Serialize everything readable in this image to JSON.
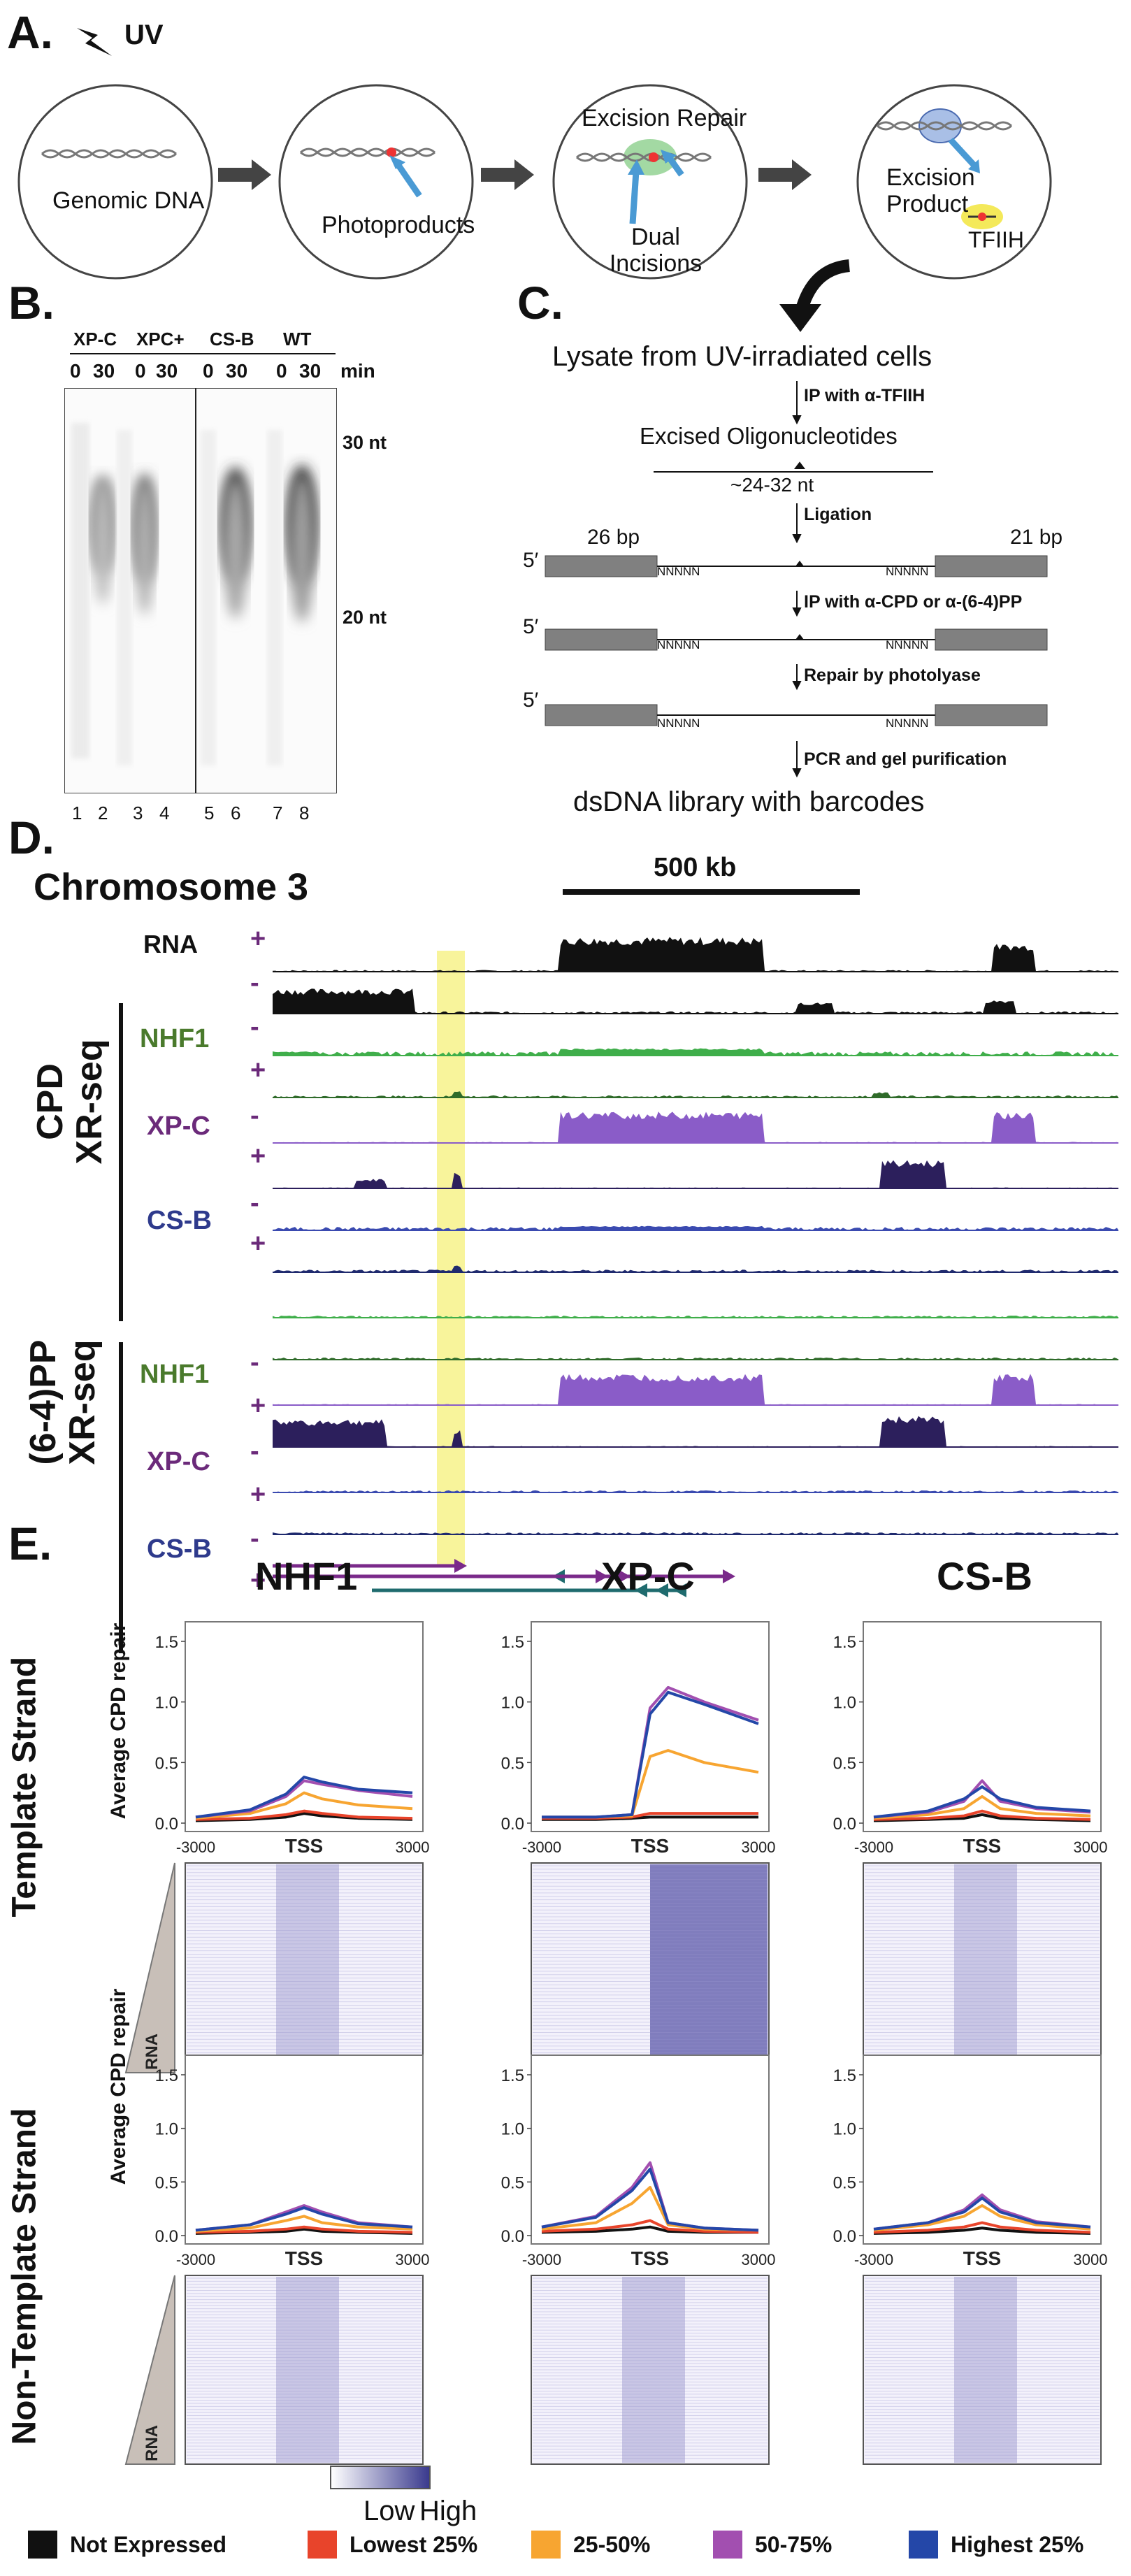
{
  "panel_letters": {
    "A": "A.",
    "B": "B.",
    "C": "C.",
    "D": "D.",
    "E": "E."
  },
  "panelA": {
    "uv_label": "UV",
    "circles": [
      "Genomic DNA",
      "Photoproducts",
      "Excision Repair",
      "Dual Incisions",
      "Excision Product",
      "TFIIH"
    ]
  },
  "panelB": {
    "groups": [
      "XP-C",
      "XPC+",
      "CS-B",
      "WT"
    ],
    "times": [
      "0",
      "30",
      "0",
      "30",
      "0",
      "30",
      "0",
      "30"
    ],
    "min_label": "min",
    "markers": [
      "30 nt",
      "20 nt"
    ],
    "lanes": [
      "1",
      "2",
      "3",
      "4",
      "5",
      "6",
      "7",
      "8"
    ]
  },
  "panelC": {
    "top": "Lysate from UV-irradiated cells",
    "step1": "IP with α-TFIIH",
    "excised": "Excised Oligonucleotides",
    "size": "~24-32 nt",
    "step2": "Ligation",
    "bp_left": "26 bp",
    "bp_right": "21 bp",
    "five_prime": "5′",
    "nnnnn": "NNNNN",
    "step3": "IP with α-CPD or α-(6-4)PP",
    "step4": "Repair by photolyase",
    "step5": "PCR and gel purification",
    "bottom": "dsDNA library with barcodes"
  },
  "panelD": {
    "chromosome": "Chromosome 3",
    "scale": "500 kb",
    "rna_label": "RNA",
    "group1": "CPD\nXR-seq",
    "group2": "(6-4)PP\nXR-seq",
    "group1_line1": "CPD",
    "group1_line2": "XR-seq",
    "group2_line1": "(6-4)PP",
    "group2_line2": "XR-seq",
    "samples": [
      "NHF1",
      "XP-C",
      "CS-B"
    ],
    "plus": "+",
    "minus": "-",
    "sample_colors": {
      "NHF1": "#4a7a2c",
      "XP-C": "#6b2a7a",
      "CS-B": "#2e3a8c"
    }
  },
  "panelE": {
    "columns": [
      "NHF1",
      "XP-C",
      "CS-B"
    ],
    "rows": [
      "Template Strand",
      "Non-Template Strand"
    ],
    "ylabel": "Average CPD repair",
    "yticks": [
      "1.5",
      "1.0",
      "0.5",
      "0.0"
    ],
    "xticks": [
      "-3000",
      "TSS",
      "3000"
    ],
    "rna_label": "RNA",
    "scale_low": "Low",
    "scale_high": "High"
  },
  "legend": [
    {
      "label": "Not Expressed",
      "color": "#111111"
    },
    {
      "label": "Lowest 25%",
      "color": "#e8442b"
    },
    {
      "label": "25-50%",
      "color": "#f7a531"
    },
    {
      "label": "50-75%",
      "color": "#a24fb0"
    },
    {
      "label": "Highest 25%",
      "color": "#2447a8"
    }
  ],
  "chart_data": [
    {
      "type": "line",
      "panel": "Template NHF1",
      "x": [
        -3000,
        -1500,
        -500,
        0,
        500,
        1500,
        3000
      ],
      "ylim": [
        0,
        1.5
      ],
      "series": [
        {
          "name": "Not Expressed",
          "values": [
            0.02,
            0.03,
            0.05,
            0.08,
            0.06,
            0.04,
            0.03
          ]
        },
        {
          "name": "Lowest 25%",
          "values": [
            0.03,
            0.04,
            0.07,
            0.1,
            0.08,
            0.05,
            0.04
          ]
        },
        {
          "name": "25-50%",
          "values": [
            0.04,
            0.08,
            0.16,
            0.25,
            0.2,
            0.15,
            0.12
          ]
        },
        {
          "name": "50-75%",
          "values": [
            0.05,
            0.1,
            0.22,
            0.35,
            0.32,
            0.27,
            0.22
          ]
        },
        {
          "name": "Highest 25%",
          "values": [
            0.05,
            0.11,
            0.24,
            0.38,
            0.34,
            0.28,
            0.25
          ]
        }
      ]
    },
    {
      "type": "line",
      "panel": "Template XP-C",
      "x": [
        -3000,
        -1500,
        -500,
        0,
        500,
        1500,
        3000
      ],
      "ylim": [
        0,
        1.5
      ],
      "series": [
        {
          "name": "Not Expressed",
          "values": [
            0.03,
            0.03,
            0.04,
            0.05,
            0.05,
            0.05,
            0.05
          ]
        },
        {
          "name": "Lowest 25%",
          "values": [
            0.04,
            0.04,
            0.05,
            0.08,
            0.08,
            0.08,
            0.08
          ]
        },
        {
          "name": "25-50%",
          "values": [
            0.05,
            0.05,
            0.06,
            0.55,
            0.6,
            0.5,
            0.42
          ]
        },
        {
          "name": "50-75%",
          "values": [
            0.05,
            0.05,
            0.07,
            0.95,
            1.12,
            1.0,
            0.85
          ]
        },
        {
          "name": "Highest 25%",
          "values": [
            0.05,
            0.05,
            0.07,
            0.9,
            1.08,
            0.98,
            0.82
          ]
        }
      ]
    },
    {
      "type": "line",
      "panel": "Template CS-B",
      "x": [
        -3000,
        -1500,
        -500,
        0,
        500,
        1500,
        3000
      ],
      "ylim": [
        0,
        1.5
      ],
      "series": [
        {
          "name": "Not Expressed",
          "values": [
            0.02,
            0.03,
            0.04,
            0.07,
            0.04,
            0.03,
            0.02
          ]
        },
        {
          "name": "Lowest 25%",
          "values": [
            0.03,
            0.04,
            0.06,
            0.1,
            0.06,
            0.04,
            0.03
          ]
        },
        {
          "name": "25-50%",
          "values": [
            0.04,
            0.07,
            0.12,
            0.22,
            0.12,
            0.08,
            0.06
          ]
        },
        {
          "name": "50-75%",
          "values": [
            0.05,
            0.09,
            0.18,
            0.35,
            0.18,
            0.12,
            0.09
          ]
        },
        {
          "name": "Highest 25%",
          "values": [
            0.05,
            0.1,
            0.2,
            0.3,
            0.2,
            0.13,
            0.1
          ]
        }
      ]
    },
    {
      "type": "line",
      "panel": "Non-Template NHF1",
      "x": [
        -3000,
        -1500,
        -500,
        0,
        500,
        1500,
        3000
      ],
      "ylim": [
        0,
        1.5
      ],
      "series": [
        {
          "name": "Not Expressed",
          "values": [
            0.02,
            0.03,
            0.04,
            0.06,
            0.04,
            0.03,
            0.02
          ]
        },
        {
          "name": "Lowest 25%",
          "values": [
            0.03,
            0.04,
            0.06,
            0.08,
            0.06,
            0.04,
            0.03
          ]
        },
        {
          "name": "25-50%",
          "values": [
            0.04,
            0.07,
            0.14,
            0.18,
            0.12,
            0.08,
            0.06
          ]
        },
        {
          "name": "50-75%",
          "values": [
            0.05,
            0.1,
            0.22,
            0.28,
            0.22,
            0.12,
            0.08
          ]
        },
        {
          "name": "Highest 25%",
          "values": [
            0.05,
            0.1,
            0.2,
            0.26,
            0.2,
            0.11,
            0.08
          ]
        }
      ]
    },
    {
      "type": "line",
      "panel": "Non-Template XP-C",
      "x": [
        -3000,
        -1500,
        -500,
        0,
        500,
        1500,
        3000
      ],
      "ylim": [
        0,
        1.5
      ],
      "series": [
        {
          "name": "Not Expressed",
          "values": [
            0.03,
            0.04,
            0.06,
            0.08,
            0.04,
            0.03,
            0.03
          ]
        },
        {
          "name": "Lowest 25%",
          "values": [
            0.04,
            0.06,
            0.1,
            0.14,
            0.06,
            0.04,
            0.03
          ]
        },
        {
          "name": "25-50%",
          "values": [
            0.06,
            0.12,
            0.3,
            0.45,
            0.1,
            0.06,
            0.05
          ]
        },
        {
          "name": "50-75%",
          "values": [
            0.08,
            0.18,
            0.45,
            0.68,
            0.12,
            0.07,
            0.05
          ]
        },
        {
          "name": "Highest 25%",
          "values": [
            0.08,
            0.17,
            0.42,
            0.62,
            0.12,
            0.07,
            0.05
          ]
        }
      ]
    },
    {
      "type": "line",
      "panel": "Non-Template CS-B",
      "x": [
        -3000,
        -1500,
        -500,
        0,
        500,
        1500,
        3000
      ],
      "ylim": [
        0,
        1.5
      ],
      "series": [
        {
          "name": "Not Expressed",
          "values": [
            0.02,
            0.03,
            0.05,
            0.07,
            0.05,
            0.03,
            0.02
          ]
        },
        {
          "name": "Lowest 25%",
          "values": [
            0.03,
            0.05,
            0.08,
            0.12,
            0.08,
            0.05,
            0.03
          ]
        },
        {
          "name": "25-50%",
          "values": [
            0.05,
            0.1,
            0.18,
            0.28,
            0.18,
            0.1,
            0.06
          ]
        },
        {
          "name": "50-75%",
          "values": [
            0.06,
            0.12,
            0.24,
            0.38,
            0.24,
            0.13,
            0.08
          ]
        },
        {
          "name": "Highest 25%",
          "values": [
            0.06,
            0.12,
            0.22,
            0.35,
            0.22,
            0.12,
            0.08
          ]
        }
      ]
    }
  ]
}
